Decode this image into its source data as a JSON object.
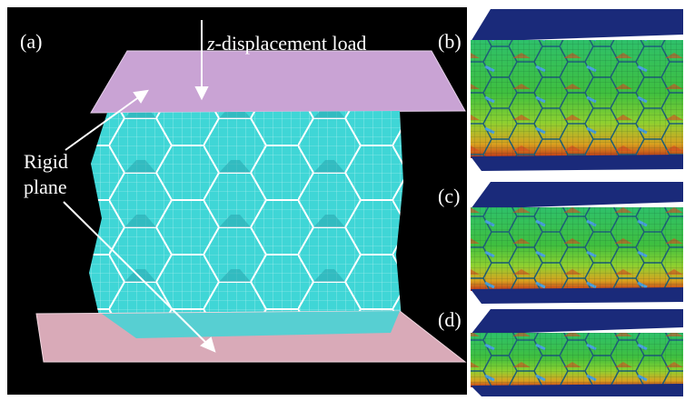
{
  "panel_a": {
    "label": "(a)",
    "load_label": {
      "variable": "z",
      "text": "-displacement load"
    },
    "rigid_plane_label": [
      "Rigid",
      "plane"
    ]
  },
  "panel_b": {
    "label": "(b)"
  },
  "panel_c": {
    "label": "(c)"
  },
  "panel_d": {
    "label": "(d)"
  }
}
